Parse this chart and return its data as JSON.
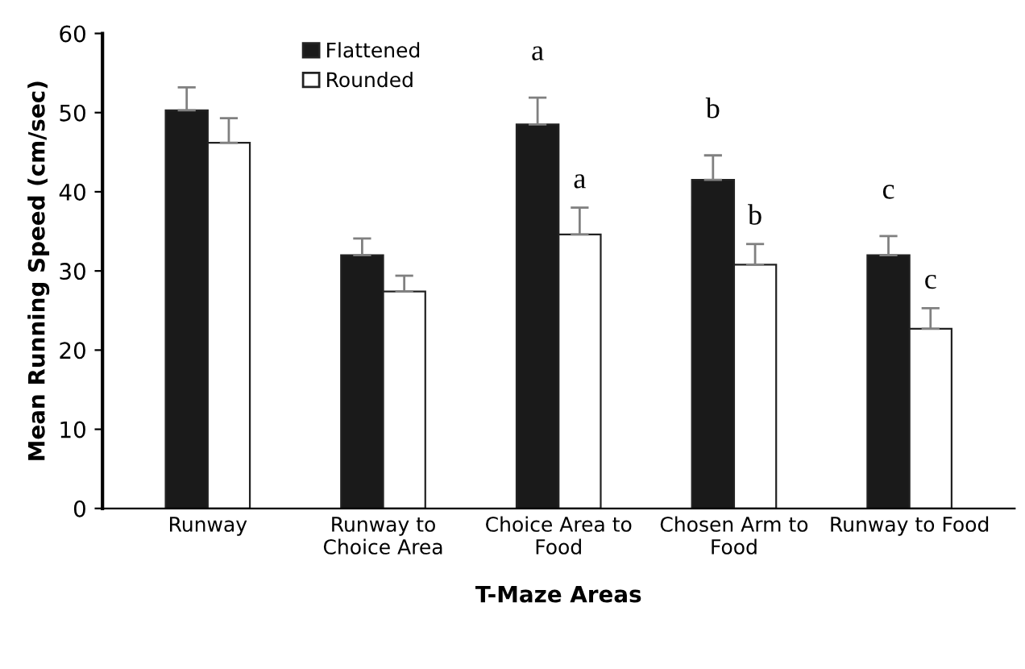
{
  "chart_data": {
    "type": "bar",
    "xlabel": "T-Maze Areas",
    "ylabel": "Mean Running Speed (cm/sec)",
    "categories": [
      "Runway",
      "Runway to\nChoice Area",
      "Choice Area to\nFood",
      "Chosen Arm to\nFood",
      "Runway to Food"
    ],
    "series": [
      {
        "name": "Flattened",
        "color": "#1a1a1a",
        "values": [
          50.3,
          32.0,
          48.5,
          41.5,
          32.0
        ],
        "errors": [
          [
            50.3,
            53.2
          ],
          [
            32.0,
            34.1
          ],
          [
            48.5,
            51.9
          ],
          [
            41.5,
            44.6
          ],
          [
            32.0,
            34.4
          ]
        ]
      },
      {
        "name": "Rounded",
        "color": "#ffffff",
        "values": [
          46.2,
          27.4,
          34.6,
          30.8,
          22.7
        ],
        "errors": [
          [
            46.2,
            49.3
          ],
          [
            27.4,
            29.4
          ],
          [
            34.6,
            38.0
          ],
          [
            30.8,
            33.4
          ],
          [
            22.7,
            25.3
          ]
        ]
      }
    ],
    "annotations": [
      "a",
      "a",
      "b",
      "b",
      "c",
      "c"
    ],
    "ylim": [
      0,
      60
    ],
    "yticks": [
      0,
      10,
      20,
      30,
      40,
      50,
      60
    ],
    "grid": false,
    "legend": "top left"
  }
}
